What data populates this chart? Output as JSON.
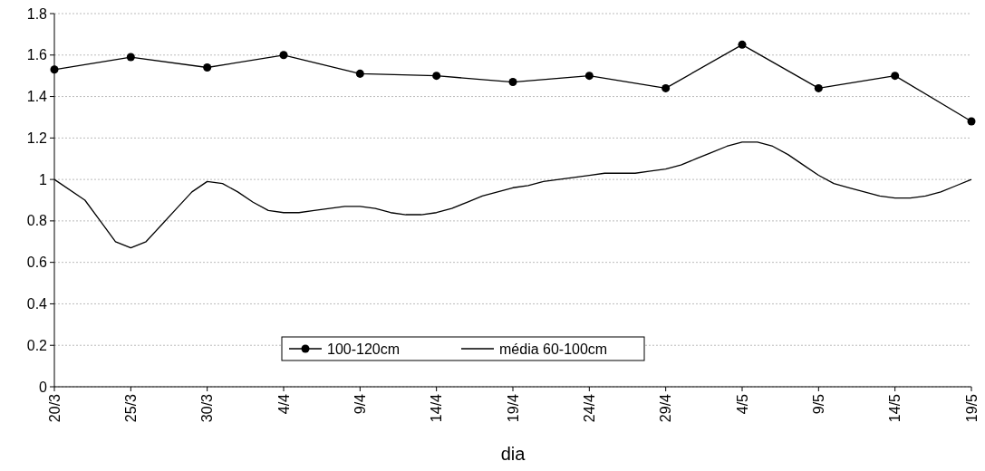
{
  "chart_data": {
    "type": "line",
    "xlabel": "dia",
    "xlim": [
      "--03-20",
      "--05-19"
    ],
    "xticks": [
      {
        "value": "--03-20",
        "label": "20/3"
      },
      {
        "value": "--03-25",
        "label": "25/3"
      },
      {
        "value": "--03-30",
        "label": "30/3"
      },
      {
        "value": "--04-04",
        "label": "4/4"
      },
      {
        "value": "--04-09",
        "label": "9/4"
      },
      {
        "value": "--04-14",
        "label": "14/4"
      },
      {
        "value": "--04-19",
        "label": "19/4"
      },
      {
        "value": "--04-24",
        "label": "24/4"
      },
      {
        "value": "--04-29",
        "label": "29/4"
      },
      {
        "value": "--05-04",
        "label": "4/5"
      },
      {
        "value": "--05-09",
        "label": "9/5"
      },
      {
        "value": "--05-14",
        "label": "14/5"
      },
      {
        "value": "--05-19",
        "label": "19/5"
      }
    ],
    "ylim": [
      0,
      1.8
    ],
    "yticks": [
      0,
      0.2,
      0.4,
      0.6,
      0.8,
      1,
      1.2,
      1.4,
      1.6,
      1.8
    ],
    "grid": "y",
    "legend": "bottom",
    "series": [
      {
        "name": "100-120cm",
        "color": "#000000",
        "marker": "circle",
        "x": [
          "--03-20",
          "--03-25",
          "--03-30",
          "--04-04",
          "--04-09",
          "--04-14",
          "--04-19",
          "--04-24",
          "--04-29",
          "--05-04",
          "--05-09",
          "--05-14",
          "--05-19"
        ],
        "values": [
          1.53,
          1.59,
          1.54,
          1.6,
          1.51,
          1.5,
          1.47,
          1.5,
          1.44,
          1.65,
          1.44,
          1.5,
          1.28
        ]
      },
      {
        "name": "média 60-100cm",
        "color": "#000000",
        "marker": "none",
        "x": [
          "--03-20",
          "--03-22",
          "--03-23",
          "--03-24",
          "--03-25",
          "--03-26",
          "--03-27",
          "--03-28",
          "--03-29",
          "--03-30",
          "--03-31",
          "--04-01",
          "--04-02",
          "--04-03",
          "--04-04",
          "--04-05",
          "--04-06",
          "--04-07",
          "--04-08",
          "--04-09",
          "--04-10",
          "--04-11",
          "--04-12",
          "--04-13",
          "--04-14",
          "--04-15",
          "--04-16",
          "--04-17",
          "--04-18",
          "--04-19",
          "--04-20",
          "--04-21",
          "--04-22",
          "--04-23",
          "--04-24",
          "--04-25",
          "--04-26",
          "--04-27",
          "--04-28",
          "--04-29",
          "--04-30",
          "--05-01",
          "--05-02",
          "--05-03",
          "--05-04",
          "--05-05",
          "--05-06",
          "--05-07",
          "--05-08",
          "--05-09",
          "--05-10",
          "--05-11",
          "--05-12",
          "--05-13",
          "--05-14",
          "--05-15",
          "--05-16",
          "--05-17",
          "--05-18",
          "--05-19"
        ],
        "values": [
          1.0,
          0.9,
          0.8,
          0.7,
          0.67,
          0.7,
          0.78,
          0.86,
          0.94,
          0.99,
          0.98,
          0.94,
          0.89,
          0.85,
          0.84,
          0.84,
          0.85,
          0.86,
          0.87,
          0.87,
          0.86,
          0.84,
          0.83,
          0.83,
          0.84,
          0.86,
          0.89,
          0.92,
          0.94,
          0.96,
          0.97,
          0.99,
          1.0,
          1.01,
          1.02,
          1.03,
          1.03,
          1.03,
          1.04,
          1.05,
          1.07,
          1.1,
          1.13,
          1.16,
          1.18,
          1.18,
          1.16,
          1.12,
          1.07,
          1.02,
          0.98,
          0.96,
          0.94,
          0.92,
          0.91,
          0.91,
          0.92,
          0.94,
          0.97,
          1.0
        ]
      }
    ]
  }
}
